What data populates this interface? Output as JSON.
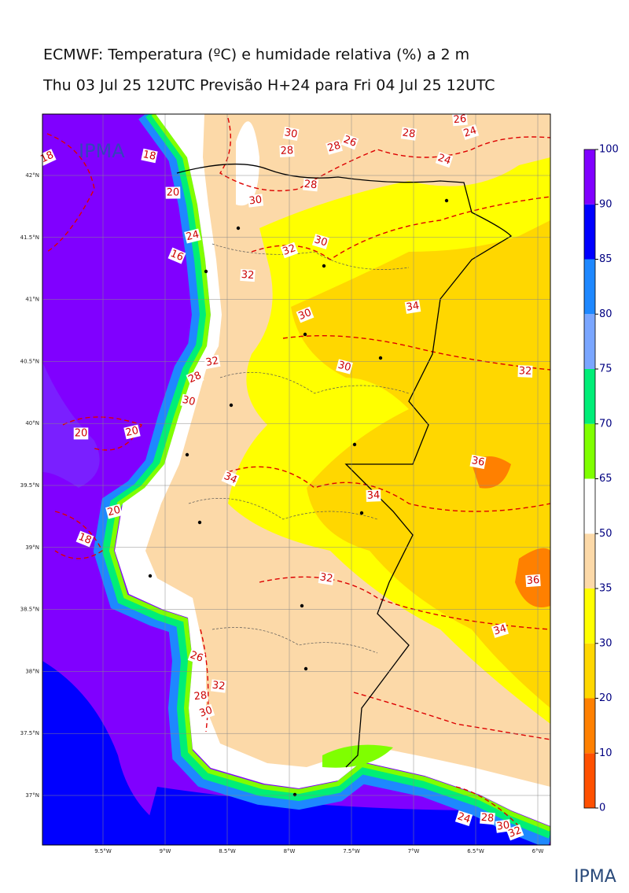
{
  "title": "ECMWF: Temperatura (ºC) e humidade relativa (%) a 2 m",
  "subtitle": "Thu 03 Jul 25 12UTC Previsão H+24 para Fri 04 Jul 25 12UTC",
  "logo_text": "IPMA",
  "lat_labels": [
    "42°N",
    "41.5°N",
    "41°N",
    "40.5°N",
    "40°N",
    "39.5°N",
    "39°N",
    "38.5°N",
    "38°N",
    "37.5°N",
    "37°N"
  ],
  "lon_labels": [
    "9.5°W",
    "9°W",
    "8.5°W",
    "8°W",
    "7.5°W",
    "7°W",
    "6.5°W",
    "6°W"
  ],
  "colorbar": {
    "ticks": [
      0,
      10,
      20,
      30,
      35,
      50,
      65,
      70,
      75,
      80,
      85,
      90,
      100
    ],
    "colors": [
      "#ff5000",
      "#ff8000",
      "#ffd700",
      "#ffff00",
      "#fcd9a8",
      "#ffffff",
      "#7fff00",
      "#00ee77",
      "#7aa6ff",
      "#1e88ff",
      "#0000ff",
      "#8000ff"
    ]
  },
  "contour_labels": [
    18,
    18,
    20,
    24,
    16,
    30,
    28,
    28,
    26,
    28,
    26,
    24,
    24,
    28,
    30,
    32,
    30,
    32,
    34,
    30,
    30,
    32,
    32,
    28,
    30,
    20,
    20,
    34,
    36,
    34,
    20,
    18,
    32,
    36,
    34,
    26,
    32,
    28,
    30,
    24,
    28,
    30,
    32
  ]
}
